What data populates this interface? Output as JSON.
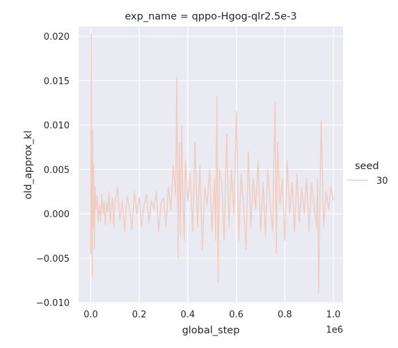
{
  "chart_data": {
    "type": "line",
    "title": "exp_name = qppo-Hgog-qlr2.5e-3",
    "xlabel": "global_step",
    "ylabel": "old_approx_kl",
    "x_offset_label": "1e6",
    "xlim": [
      -0.05,
      1.04
    ],
    "ylim": [
      -0.0101,
      0.0211
    ],
    "x_ticks": [
      0.0,
      0.2,
      0.4,
      0.6,
      0.8,
      1.0
    ],
    "x_tick_labels": [
      "0.0",
      "0.2",
      "0.4",
      "0.6",
      "0.8",
      "1.0"
    ],
    "y_ticks": [
      -0.01,
      -0.005,
      0.0,
      0.005,
      0.01,
      0.015,
      0.02
    ],
    "y_tick_labels": [
      "−0.010",
      "−0.005",
      "0.000",
      "0.005",
      "0.010",
      "0.015",
      "0.020"
    ],
    "grid": true,
    "background": "#eaeaf2",
    "legend": {
      "title": "seed",
      "placement": "right",
      "entries": [
        {
          "label": "30",
          "color": "#f0cdc3"
        }
      ]
    },
    "series": [
      {
        "name": "30",
        "color": "#f0cdc3",
        "x": [
          0.0,
          0.002,
          0.004,
          0.006,
          0.008,
          0.01,
          0.012,
          0.015,
          0.018,
          0.022,
          0.026,
          0.03,
          0.035,
          0.04,
          0.045,
          0.05,
          0.055,
          0.06,
          0.065,
          0.07,
          0.075,
          0.08,
          0.085,
          0.09,
          0.095,
          0.1,
          0.11,
          0.12,
          0.13,
          0.14,
          0.15,
          0.16,
          0.17,
          0.18,
          0.19,
          0.2,
          0.21,
          0.22,
          0.23,
          0.24,
          0.25,
          0.26,
          0.27,
          0.28,
          0.29,
          0.3,
          0.31,
          0.32,
          0.33,
          0.34,
          0.35,
          0.355,
          0.36,
          0.365,
          0.37,
          0.375,
          0.38,
          0.385,
          0.39,
          0.4,
          0.41,
          0.42,
          0.43,
          0.44,
          0.45,
          0.46,
          0.47,
          0.48,
          0.49,
          0.5,
          0.51,
          0.515,
          0.52,
          0.525,
          0.53,
          0.54,
          0.55,
          0.56,
          0.57,
          0.58,
          0.59,
          0.6,
          0.61,
          0.62,
          0.63,
          0.64,
          0.65,
          0.66,
          0.67,
          0.68,
          0.69,
          0.7,
          0.71,
          0.72,
          0.73,
          0.74,
          0.75,
          0.755,
          0.76,
          0.765,
          0.77,
          0.78,
          0.79,
          0.8,
          0.81,
          0.82,
          0.83,
          0.84,
          0.85,
          0.86,
          0.87,
          0.88,
          0.89,
          0.9,
          0.91,
          0.92,
          0.93,
          0.935,
          0.94,
          0.945,
          0.95,
          0.96,
          0.97,
          0.98,
          0.99,
          1.0
        ],
        "y": [
          -0.0045,
          0.0202,
          0.002,
          -0.007,
          0.0095,
          -0.0015,
          0.0055,
          -0.004,
          0.003,
          0.0005,
          0.002,
          -0.001,
          0.001,
          -0.0008,
          0.0022,
          0.0,
          0.0015,
          -0.0012,
          0.0012,
          0.0002,
          0.0025,
          -0.001,
          0.0008,
          0.0018,
          -0.0015,
          0.0012,
          0.003,
          -0.0008,
          0.0015,
          -0.002,
          0.002,
          0.0005,
          -0.0018,
          0.0025,
          0.0,
          0.0018,
          -0.0015,
          0.001,
          0.0022,
          -0.001,
          0.0015,
          0.0005,
          0.0025,
          -0.002,
          0.0012,
          0.0018,
          -0.0015,
          0.003,
          0.0005,
          0.0055,
          0.002,
          0.0154,
          -0.005,
          0.008,
          -0.0025,
          0.01,
          0.0015,
          -0.003,
          0.006,
          0.0015,
          0.0045,
          -0.002,
          0.008,
          -0.0015,
          0.0055,
          -0.004,
          0.003,
          0.001,
          0.005,
          -0.002,
          0.004,
          -0.003,
          0.0132,
          -0.0077,
          0.005,
          0.0035,
          -0.003,
          0.009,
          -0.0015,
          0.005,
          0.0,
          0.0115,
          -0.003,
          0.0045,
          0.001,
          -0.004,
          0.007,
          -0.0015,
          0.004,
          0.0005,
          0.006,
          -0.002,
          0.0035,
          -0.0025,
          0.005,
          0.001,
          -0.002,
          0.006,
          0.0125,
          -0.0045,
          0.008,
          0.001,
          0.004,
          -0.003,
          0.006,
          0.0,
          0.0035,
          -0.002,
          0.0045,
          -0.001,
          0.003,
          0.0,
          0.004,
          -0.002,
          0.0035,
          0.001,
          -0.0015,
          0.004,
          -0.0089,
          0.002,
          0.0105,
          -0.0015,
          0.0025,
          0.0005,
          0.003,
          0.0015
        ]
      }
    ]
  }
}
